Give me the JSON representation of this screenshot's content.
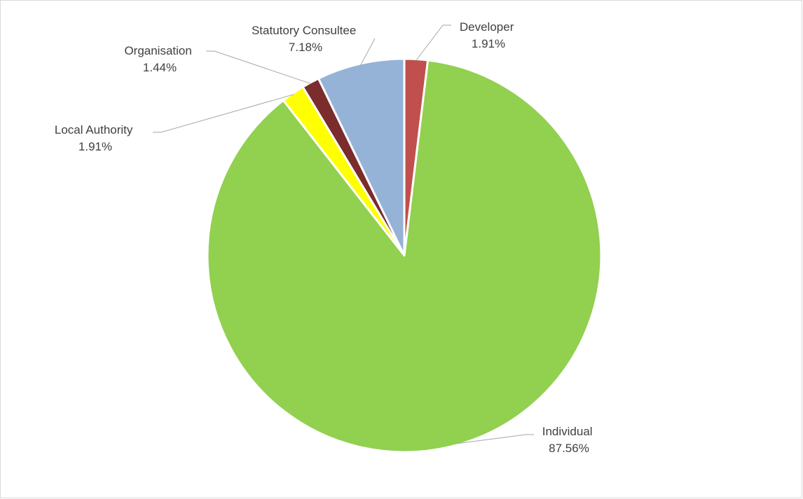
{
  "chart_data": {
    "type": "pie",
    "title": "",
    "legend": "none",
    "slices": [
      {
        "label": "Developer",
        "value": 1.91,
        "display": "1.91%",
        "color": "#c0504d"
      },
      {
        "label": "Individual",
        "value": 87.56,
        "display": "87.56%",
        "color": "#92d050"
      },
      {
        "label": "Local Authority",
        "value": 1.91,
        "display": "1.91%",
        "color": "#ffff00"
      },
      {
        "label": "Organisation",
        "value": 1.44,
        "display": "1.44%",
        "color": "#7b2c2c"
      },
      {
        "label": "Statutory Consultee",
        "value": 7.18,
        "display": "7.18%",
        "color": "#95b3d7"
      }
    ]
  }
}
